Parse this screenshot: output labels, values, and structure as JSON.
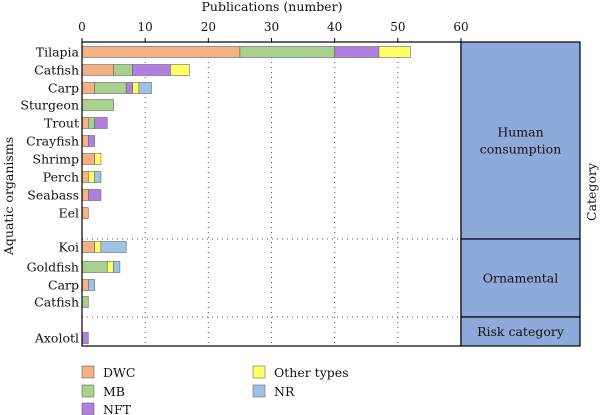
{
  "chart_data": {
    "type": "bar",
    "orientation": "horizontal",
    "stacked": true,
    "title": "",
    "xlabel": "Publications (number)",
    "ylabel": "Aquatic organisms",
    "right_label": "Category",
    "xlim": [
      0,
      60
    ],
    "x_ticks": [
      "0",
      "10",
      "20",
      "30",
      "40",
      "50",
      "60"
    ],
    "grid": "vertical dotted",
    "legend_position": "bottom-left",
    "series": [
      {
        "name": "DWC",
        "color": "#f4b183"
      },
      {
        "name": "MB",
        "color": "#a9d18e"
      },
      {
        "name": "NFT",
        "color": "#b07fe0"
      },
      {
        "name": "Other types",
        "color": "#ffff66"
      },
      {
        "name": "NR",
        "color": "#9dc3e6"
      }
    ],
    "groups": [
      {
        "category": "Human consumption",
        "rows": [
          {
            "label": "Tilapia",
            "values": [
              25,
              15,
              7,
              5,
              0
            ]
          },
          {
            "label": "Catfish",
            "values": [
              5,
              3,
              6,
              3,
              0
            ]
          },
          {
            "label": "Carp",
            "values": [
              2,
              5,
              1,
              1,
              2
            ]
          },
          {
            "label": "Sturgeon",
            "values": [
              0,
              5,
              0,
              0,
              0
            ]
          },
          {
            "label": "Trout",
            "values": [
              1,
              1,
              2,
              0,
              0
            ]
          },
          {
            "label": "Crayfish",
            "values": [
              1,
              0,
              1,
              0,
              0
            ]
          },
          {
            "label": "Shrimp",
            "values": [
              2,
              0,
              0,
              1,
              0
            ]
          },
          {
            "label": "Perch",
            "values": [
              1,
              0,
              0,
              1,
              1
            ]
          },
          {
            "label": "Seabass",
            "values": [
              1,
              0,
              2,
              0,
              0
            ]
          },
          {
            "label": "Eel",
            "values": [
              1,
              0,
              0,
              0,
              0
            ]
          }
        ]
      },
      {
        "category": "Ornamental",
        "rows": [
          {
            "label": "Koi",
            "values": [
              2,
              0,
              0,
              1,
              4
            ]
          },
          {
            "label": "Goldfish",
            "values": [
              0,
              4,
              0,
              1,
              1
            ]
          },
          {
            "label": "Carp",
            "values": [
              1,
              0,
              0,
              0,
              1
            ]
          },
          {
            "label": "Catfish",
            "values": [
              0,
              1,
              0,
              0,
              0
            ]
          }
        ]
      },
      {
        "category": "Risk category",
        "rows": [
          {
            "label": "Axolotl",
            "values": [
              0,
              0,
              1,
              0,
              0
            ]
          }
        ]
      }
    ],
    "category_panel_color": "#8eaadb"
  }
}
